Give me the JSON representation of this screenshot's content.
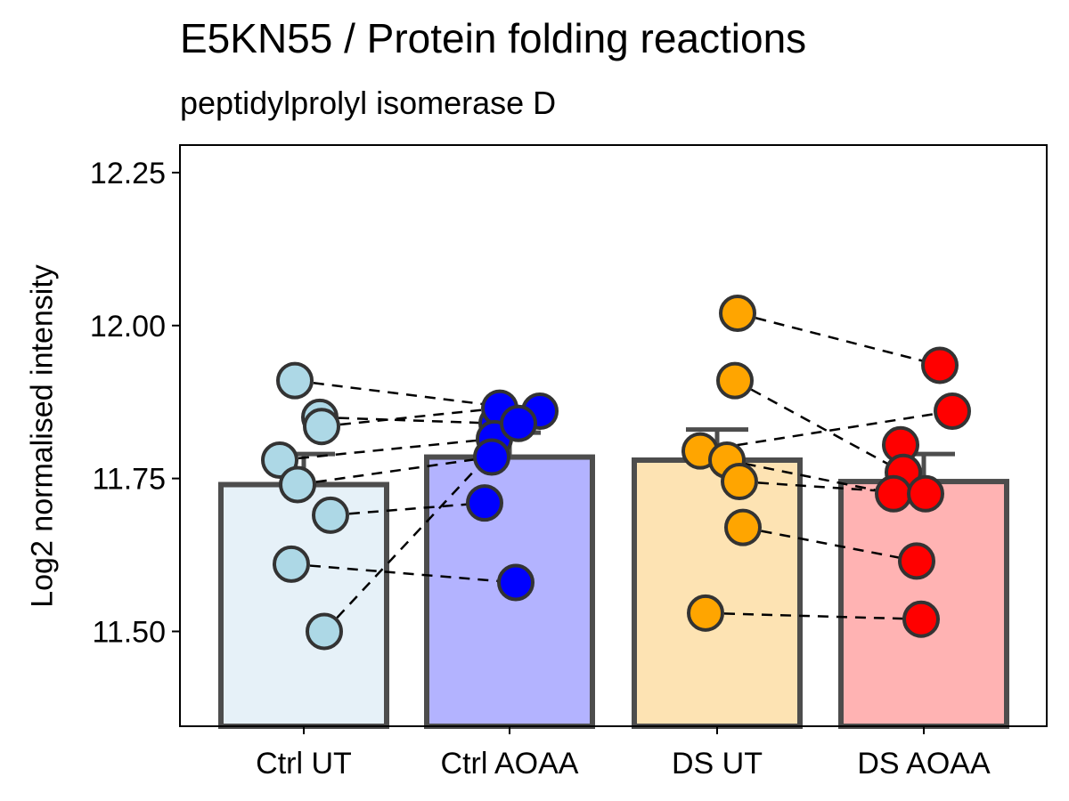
{
  "chart_data": {
    "type": "bar",
    "title": "E5KN55 / Protein folding reactions",
    "subtitle": "peptidylprolyl isomerase D",
    "xlabel": "",
    "ylabel": "Log2 normalised intensity",
    "ylim": [
      11.345,
      12.295
    ],
    "yticks": [
      11.5,
      11.75,
      12.0,
      12.25
    ],
    "ytick_labels": [
      "11.50",
      "11.75",
      "12.00",
      "12.25"
    ],
    "grid": false,
    "legend": "none",
    "categories": [
      "Ctrl UT",
      "Ctrl AOAA",
      "DS UT",
      "DS AOAA"
    ],
    "values": [
      11.74,
      11.785,
      11.78,
      11.745
    ],
    "errors": [
      0.05,
      0.04,
      0.05,
      0.045
    ],
    "bar_fills": [
      "#e6f1f8",
      "#b3b3ff",
      "#fde3b3",
      "#ffb3b3"
    ],
    "point_colors": [
      "#add8e6",
      "#0000ff",
      "#ffa500",
      "#ff0000"
    ],
    "points": [
      [
        11.91,
        11.85,
        11.835,
        11.78,
        11.74,
        11.69,
        11.61,
        11.5
      ],
      [
        11.84,
        11.86,
        11.865,
        11.815,
        11.785,
        11.71,
        11.58,
        11.84
      ],
      [
        12.02,
        11.91,
        11.795,
        11.78,
        11.745,
        11.67,
        11.53
      ],
      [
        11.935,
        11.86,
        11.805,
        11.76,
        11.725,
        11.725,
        11.615,
        11.52
      ]
    ],
    "pairs": [
      {
        "from": [
          0,
          0
        ],
        "to": [
          1,
          1
        ]
      },
      {
        "from": [
          0,
          1
        ],
        "to": [
          1,
          0
        ]
      },
      {
        "from": [
          0,
          2
        ],
        "to": [
          1,
          2
        ]
      },
      {
        "from": [
          0,
          3
        ],
        "to": [
          1,
          3
        ]
      },
      {
        "from": [
          0,
          4
        ],
        "to": [
          1,
          4
        ]
      },
      {
        "from": [
          0,
          5
        ],
        "to": [
          1,
          5
        ]
      },
      {
        "from": [
          0,
          6
        ],
        "to": [
          1,
          6
        ]
      },
      {
        "from": [
          0,
          7
        ],
        "to": [
          1,
          7
        ]
      },
      {
        "from": [
          2,
          0
        ],
        "to": [
          3,
          0
        ]
      },
      {
        "from": [
          2,
          1
        ],
        "to": [
          3,
          3
        ]
      },
      {
        "from": [
          2,
          2
        ],
        "to": [
          3,
          1
        ]
      },
      {
        "from": [
          2,
          3
        ],
        "to": [
          3,
          4
        ]
      },
      {
        "from": [
          2,
          4
        ],
        "to": [
          3,
          5
        ]
      },
      {
        "from": [
          2,
          5
        ],
        "to": [
          3,
          6
        ]
      },
      {
        "from": [
          2,
          6
        ],
        "to": [
          3,
          7
        ]
      }
    ]
  }
}
